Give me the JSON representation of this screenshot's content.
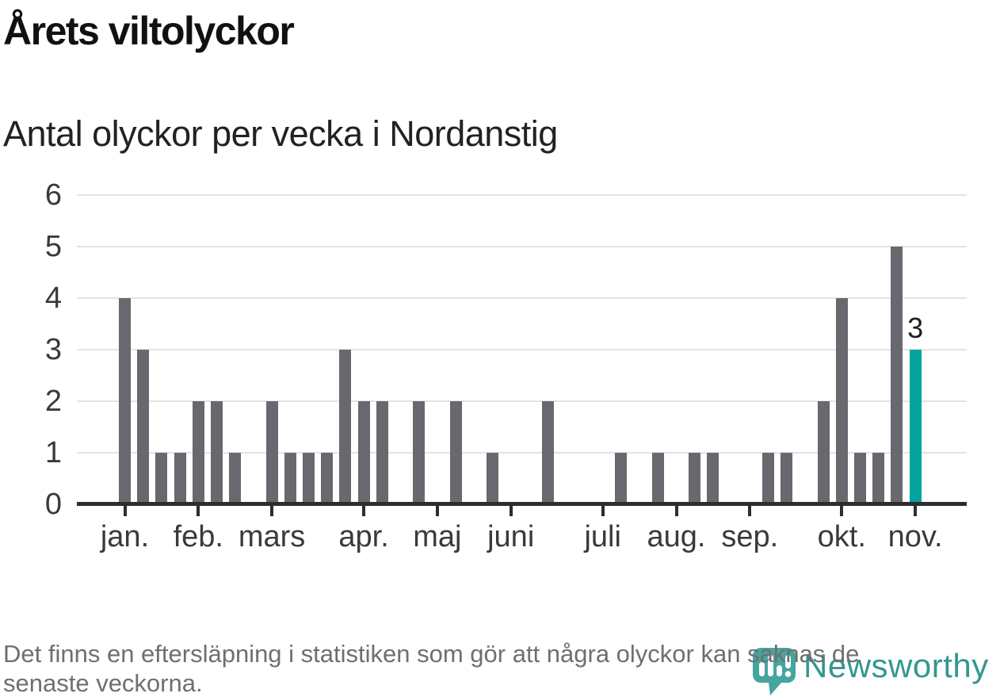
{
  "title": "Årets viltolyckor",
  "subtitle": "Antal olyckor per vecka i Nordanstig",
  "footer": {
    "lines": [
      "Det finns en eftersläpning i statistiken som gör att några olyckor kan saknas de",
      "senaste veckorna."
    ]
  },
  "logo": {
    "text": "Newsworthy"
  },
  "colors": {
    "bar_gray": "#68686e",
    "bar_highlight": "#00a49a",
    "gridline": "#e3e3e3",
    "axis": "#2d2d2d",
    "tick_label": "#3a3a3a",
    "footer_text": "#6f6f6f",
    "logo_icon_teal": "#46a59e",
    "logo_text_teal": "#33978f"
  },
  "chart_data": {
    "type": "bar",
    "title": "Årets viltolyckor",
    "subtitle": "Antal olyckor per vecka i Nordanstig",
    "xlabel": "",
    "ylabel": "",
    "x_unit": "vecka",
    "ylim": [
      0,
      6
    ],
    "yticks": [
      "0",
      "1",
      "2",
      "3",
      "4",
      "5",
      "6"
    ],
    "grid": true,
    "values": [
      4,
      3,
      1,
      1,
      2,
      2,
      1,
      0,
      2,
      1,
      1,
      1,
      3,
      2,
      2,
      0,
      2,
      0,
      2,
      0,
      1,
      0,
      0,
      2,
      0,
      0,
      0,
      1,
      0,
      1,
      0,
      1,
      1,
      0,
      0,
      1,
      1,
      0,
      2,
      4,
      1,
      1,
      5,
      3
    ],
    "months": [
      {
        "label": "jan.",
        "week_index": 0
      },
      {
        "label": "feb.",
        "week_index": 4
      },
      {
        "label": "mars",
        "week_index": 8
      },
      {
        "label": "apr.",
        "week_index": 13
      },
      {
        "label": "maj",
        "week_index": 17
      },
      {
        "label": "juni",
        "week_index": 21
      },
      {
        "label": "juli",
        "week_index": 26
      },
      {
        "label": "aug.",
        "week_index": 30
      },
      {
        "label": "sep.",
        "week_index": 34
      },
      {
        "label": "okt.",
        "week_index": 39
      },
      {
        "label": "nov.",
        "week_index": 43
      }
    ],
    "highlight": {
      "week_index": 43,
      "value_label": "3"
    }
  }
}
